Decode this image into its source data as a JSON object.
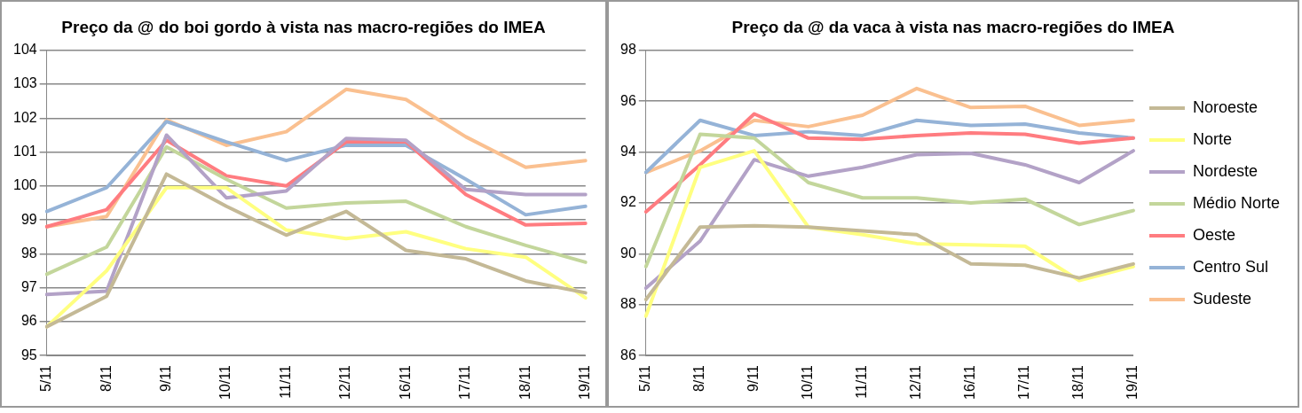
{
  "chart_data": [
    {
      "type": "line",
      "title": "Preço da @ do boi gordo à vista nas macro-regiões do IMEA",
      "categories": [
        "5/11",
        "8/11",
        "9/11",
        "10/11",
        "11/11",
        "12/11",
        "16/11",
        "17/11",
        "18/11",
        "19/11"
      ],
      "ylim": [
        95,
        104
      ],
      "yticks": [
        95,
        96,
        97,
        98,
        99,
        100,
        101,
        102,
        103,
        104
      ],
      "grid": "y",
      "legend": false,
      "marker": "none",
      "series": [
        {
          "color": "#c4b996",
          "values": [
            95.85,
            96.75,
            100.35,
            99.4,
            98.55,
            99.25,
            98.1,
            97.85,
            97.2,
            96.85
          ]
        },
        {
          "color": "#ffff80",
          "values": [
            95.85,
            97.5,
            99.95,
            99.95,
            98.7,
            98.45,
            98.65,
            98.15,
            97.9,
            96.7
          ]
        },
        {
          "color": "#b3a2c7",
          "values": [
            96.8,
            96.9,
            101.5,
            99.65,
            99.85,
            101.4,
            101.35,
            99.9,
            99.75,
            99.75
          ]
        },
        {
          "color": "#c3d69b",
          "values": [
            97.4,
            98.2,
            101.15,
            100.2,
            99.35,
            99.5,
            99.55,
            98.8,
            98.25,
            97.75
          ]
        },
        {
          "color": "#ff7c80",
          "values": [
            98.8,
            99.3,
            101.35,
            100.3,
            100.0,
            101.3,
            101.3,
            99.75,
            98.85,
            98.9
          ]
        },
        {
          "color": "#95b3d7",
          "values": [
            99.25,
            99.95,
            101.9,
            101.3,
            100.75,
            101.2,
            101.2,
            100.2,
            99.15,
            99.4
          ]
        },
        {
          "color": "#fac090",
          "values": [
            98.8,
            99.1,
            101.95,
            101.2,
            101.6,
            102.85,
            102.55,
            101.45,
            100.55,
            100.75
          ]
        }
      ]
    },
    {
      "type": "line",
      "title": "Preço da @ da vaca à vista nas macro-regiões do IMEA",
      "categories": [
        "5/11",
        "8/11",
        "9/11",
        "10/11",
        "11/11",
        "12/11",
        "16/11",
        "17/11",
        "18/11",
        "19/11"
      ],
      "ylim": [
        86,
        98
      ],
      "yticks": [
        86,
        88,
        90,
        92,
        94,
        96,
        98
      ],
      "grid": "y",
      "legend": "right",
      "marker": "none",
      "series": [
        {
          "name": "Noroeste",
          "color": "#c4b996",
          "values": [
            88.2,
            91.05,
            91.1,
            91.05,
            90.9,
            90.75,
            89.6,
            89.55,
            89.05,
            89.6
          ]
        },
        {
          "name": "Norte",
          "color": "#ffff80",
          "values": [
            87.55,
            93.4,
            94.05,
            91.05,
            90.75,
            90.4,
            90.35,
            90.3,
            88.95,
            89.5
          ]
        },
        {
          "name": "Nordeste",
          "color": "#b3a2c7",
          "values": [
            88.65,
            90.5,
            93.7,
            93.05,
            93.4,
            93.9,
            93.95,
            93.5,
            92.8,
            94.05
          ]
        },
        {
          "name": "Médio Norte",
          "color": "#c3d69b",
          "values": [
            89.5,
            94.7,
            94.55,
            92.8,
            92.2,
            92.2,
            92.0,
            92.15,
            91.15,
            91.7
          ]
        },
        {
          "name": "Oeste",
          "color": "#ff7c80",
          "values": [
            91.65,
            93.5,
            95.5,
            94.55,
            94.5,
            94.65,
            94.75,
            94.7,
            94.35,
            94.55
          ]
        },
        {
          "name": "Centro Sul",
          "color": "#95b3d7",
          "values": [
            93.2,
            95.25,
            94.65,
            94.8,
            94.65,
            95.25,
            95.05,
            95.1,
            94.75,
            94.55
          ]
        },
        {
          "name": "Sudeste",
          "color": "#fac090",
          "values": [
            93.2,
            94.05,
            95.25,
            95.0,
            95.45,
            96.5,
            95.75,
            95.8,
            95.05,
            95.25
          ]
        }
      ]
    }
  ]
}
